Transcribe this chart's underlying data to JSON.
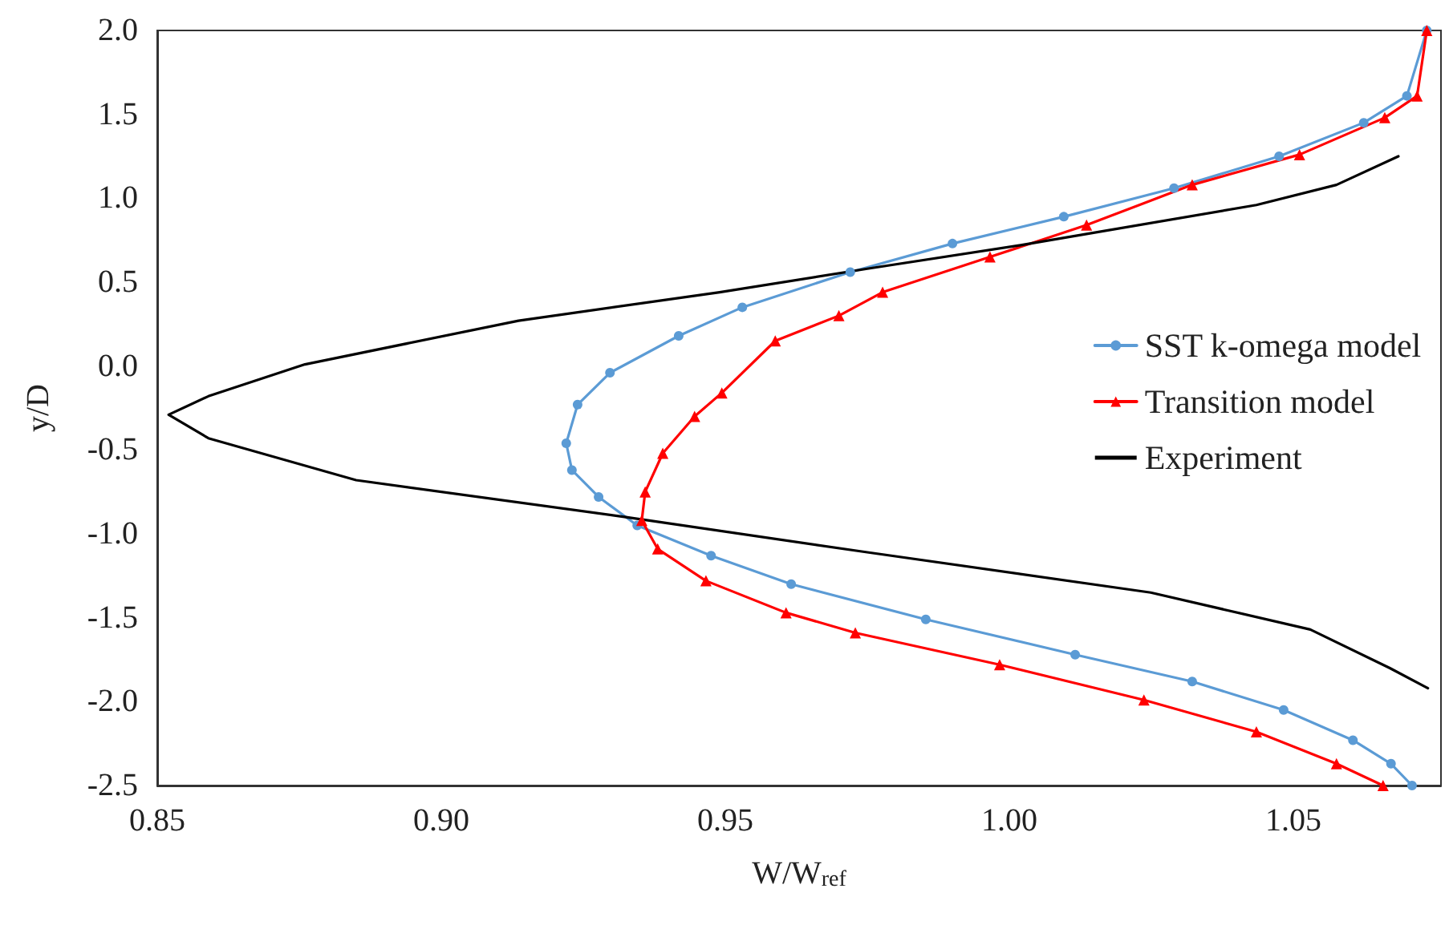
{
  "chart_data": {
    "type": "line",
    "xlabel": "W/W$_{ref}$",
    "ylabel": "y/D",
    "xlim": [
      0.85,
      1.076
    ],
    "xticks": [
      0.85,
      {
        "value": 0.9,
        "label": "0.90"
      },
      0.95,
      {
        "value": 1,
        "label": "1.00"
      },
      1.05
    ],
    "ylim": [
      -2.5,
      2.0
    ],
    "yticks": [
      {
        "value": -2.5,
        "label": "-2.5"
      },
      {
        "value": -2,
        "label": "-2.0"
      },
      {
        "value": -1.5,
        "label": "-1.5"
      },
      {
        "value": -1,
        "label": "-1.0"
      },
      {
        "value": -0.5,
        "label": "-0.5"
      },
      {
        "value": 0,
        "label": "0.0"
      },
      {
        "value": 0.5,
        "label": "0.5"
      },
      {
        "value": 1,
        "label": "1.0"
      },
      {
        "value": 1.5,
        "label": "1.5"
      },
      {
        "value": 2,
        "label": "2.0"
      }
    ],
    "grid": false,
    "legend": "right",
    "line_style": "solid",
    "series": [
      {
        "name": "SST k-omega model",
        "color": "#5b9bd5",
        "marker": "circle",
        "x": [
          1.0735,
          1.07,
          1.0624,
          1.0475,
          1.029,
          1.0096,
          0.99,
          0.972,
          0.953,
          0.9418,
          0.9297,
          0.924,
          0.922,
          0.923,
          0.9277,
          0.9345,
          0.9475,
          0.9616,
          0.9853,
          1.0116,
          1.0322,
          1.0483,
          1.0605,
          1.0672,
          1.0709
        ],
        "values": [
          2.0,
          1.61,
          1.45,
          1.25,
          1.06,
          0.89,
          0.73,
          0.56,
          0.35,
          0.18,
          -0.04,
          -0.23,
          -0.46,
          -0.62,
          -0.78,
          -0.95,
          -1.13,
          -1.3,
          -1.51,
          -1.72,
          -1.88,
          -2.05,
          -2.23,
          -2.37,
          -2.5
        ]
      },
      {
        "name": "Transition model",
        "color": "#ff0000",
        "marker": "triangle",
        "x": [
          1.0735,
          1.0718,
          1.0661,
          1.0511,
          1.0322,
          1.0136,
          0.9966,
          0.9777,
          0.97,
          0.9588,
          0.9494,
          0.9446,
          0.939,
          0.9359,
          0.9353,
          0.9381,
          0.9466,
          0.9607,
          0.9729,
          0.9983,
          1.0237,
          1.0435,
          1.0576,
          1.0658
        ],
        "values": [
          2.0,
          1.61,
          1.48,
          1.26,
          1.08,
          0.84,
          0.65,
          0.44,
          0.3,
          0.15,
          -0.16,
          -0.3,
          -0.52,
          -0.75,
          -0.92,
          -1.09,
          -1.28,
          -1.47,
          -1.59,
          -1.78,
          -1.99,
          -2.18,
          -2.37,
          -2.5
        ]
      },
      {
        "name": "Experiment",
        "color": "#000000",
        "marker": "none",
        "x": [
          1.0685,
          1.0576,
          1.0435,
          1.002,
          0.975,
          0.949,
          0.9136,
          0.876,
          0.859,
          0.852,
          0.859,
          0.885,
          0.9325,
          0.975,
          1.0249,
          1.053,
          1.067,
          1.0737
        ],
        "values": [
          1.25,
          1.08,
          0.96,
          0.72,
          0.58,
          0.44,
          0.27,
          0.01,
          -0.18,
          -0.29,
          -0.43,
          -0.68,
          -0.9,
          -1.11,
          -1.35,
          -1.57,
          -1.8,
          -1.92
        ]
      }
    ]
  }
}
